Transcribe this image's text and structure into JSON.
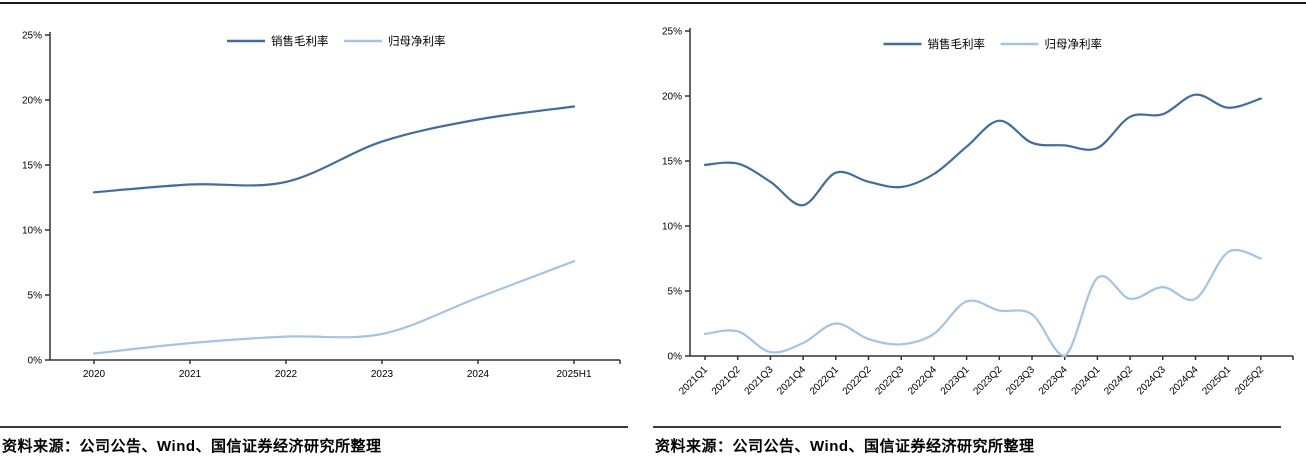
{
  "sources": [
    "资料来源：公司公告、Wind、国信证券经济研究所整理",
    "资料来源：公司公告、Wind、国信证券经济研究所整理"
  ],
  "colors": {
    "gross_margin_line": "#3E6DA4",
    "net_margin_line": "#A2C4E8",
    "axis": "#333333",
    "text": "#000000",
    "divider": "#3a3a3a"
  },
  "chart_data": [
    {
      "type": "line",
      "title": "",
      "categories": [
        "2020",
        "2021",
        "2022",
        "2023",
        "2024",
        "2025H1"
      ],
      "series": [
        {
          "name": "销售毛利率",
          "color": "#3E6DA4",
          "values": [
            12.9,
            13.5,
            13.7,
            16.8,
            18.5,
            19.5
          ]
        },
        {
          "name": "归母净利率",
          "color": "#A2C4E8",
          "values": [
            0.5,
            1.3,
            1.8,
            2.0,
            4.8,
            7.6
          ]
        }
      ],
      "ylim": [
        0,
        25
      ],
      "y_tick_step": 5,
      "y_tick_labels": [
        "0%",
        "5%",
        "10%",
        "15%",
        "20%",
        "25%"
      ],
      "legend_position": "top-center",
      "grid": false,
      "smooth": true,
      "x_label_rotation": 0
    },
    {
      "type": "line",
      "title": "",
      "categories": [
        "2021Q1",
        "2021Q2",
        "2021Q3",
        "2021Q4",
        "2022Q1",
        "2022Q2",
        "2022Q3",
        "2022Q4",
        "2023Q1",
        "2023Q2",
        "2023Q3",
        "2023Q4",
        "2024Q1",
        "2024Q2",
        "2024Q3",
        "2024Q4",
        "2025Q1",
        "2025Q2"
      ],
      "series": [
        {
          "name": "销售毛利率",
          "color": "#3E6DA4",
          "values": [
            14.7,
            14.8,
            13.4,
            11.6,
            14.1,
            13.4,
            13.0,
            14.0,
            16.1,
            18.1,
            16.4,
            16.2,
            16.0,
            18.4,
            18.6,
            20.1,
            19.1,
            19.8
          ]
        },
        {
          "name": "归母净利率",
          "color": "#A2C4E8",
          "values": [
            1.7,
            1.9,
            0.3,
            1.0,
            2.5,
            1.3,
            0.9,
            1.7,
            4.2,
            3.5,
            3.2,
            0.0,
            6.0,
            4.4,
            5.3,
            4.4,
            8.0,
            7.5
          ]
        }
      ],
      "ylim": [
        0,
        25
      ],
      "y_tick_step": 5,
      "y_tick_labels": [
        "0%",
        "5%",
        "10%",
        "15%",
        "20%",
        "25%"
      ],
      "legend_position": "top-center",
      "grid": false,
      "smooth": true,
      "x_label_rotation": -45
    }
  ]
}
